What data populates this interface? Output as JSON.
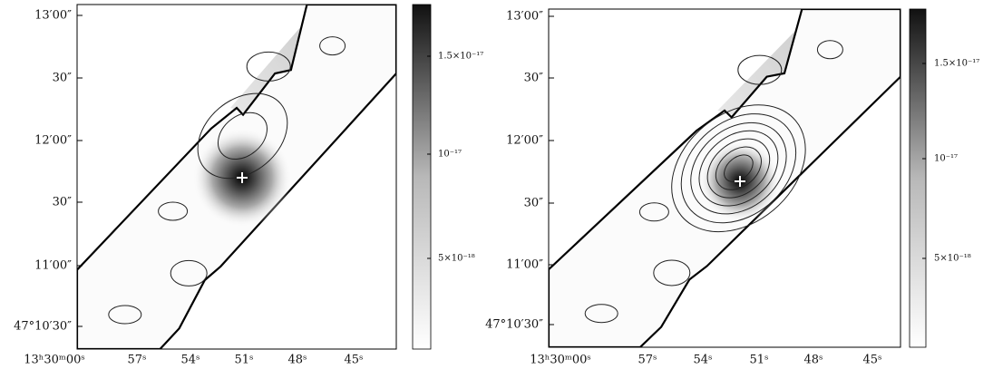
{
  "panels": [
    {
      "y_ticks": [
        "13′00″",
        "30″",
        "12′00″",
        "30″",
        "11′00″",
        "47°10′30″"
      ],
      "x_ticks": [
        "13ʰ30ᵐ00ˢ",
        "57ˢ",
        "54ˢ",
        "51ˢ",
        "48ˢ",
        "45ˢ"
      ],
      "colorbar_ticks": [
        "1.5×10⁻¹⁷",
        "10⁻¹⁷",
        "5×10⁻¹⁸"
      ]
    },
    {
      "y_ticks": [
        "13′00″",
        "30″",
        "12′00″",
        "30″",
        "11′00″",
        "47°10′30″"
      ],
      "x_ticks": [
        "13ʰ30ᵐ00ˢ",
        "57ˢ",
        "54ˢ",
        "51ˢ",
        "48ˢ",
        "45ˢ"
      ],
      "colorbar_ticks": [
        "1.5×10⁻¹⁷",
        "10⁻¹⁷",
        "5×10⁻¹⁸"
      ]
    }
  ]
}
